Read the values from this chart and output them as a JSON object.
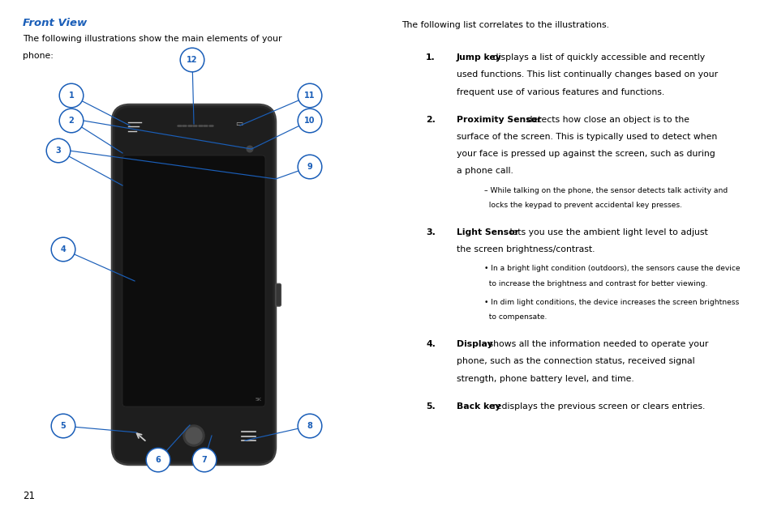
{
  "bg_color": "#ffffff",
  "blue": "#1a5eb8",
  "black": "#000000",
  "phone_body": "#252525",
  "phone_screen": "#111111",
  "title": "Front View",
  "intro_left_1": "The following illustrations show the main elements of your",
  "intro_left_2": "phone:",
  "intro_right": "The following list correlates to the illustrations.",
  "page_num": "21",
  "items": [
    {
      "n": "1.",
      "bold": "Jump key",
      "rest_lines": [
        " displays a list of quickly accessible and recently",
        "used functions. This list continually changes based on your",
        "frequent use of various features and functions."
      ],
      "subs": []
    },
    {
      "n": "2.",
      "bold": "Proximity Sensor",
      "rest_lines": [
        " detects how close an object is to the",
        "surface of the screen. This is typically used to detect when",
        "your face is pressed up against the screen, such as during",
        "a phone call."
      ],
      "subs": [
        {
          "type": "dash",
          "lines": [
            "– While talking on the phone, the sensor detects talk activity and",
            "  locks the keypad to prevent accidental key presses."
          ]
        }
      ]
    },
    {
      "n": "3.",
      "bold": "Light Sensor",
      "rest_lines": [
        " lets you use the ambient light level to adjust",
        "the screen brightness/contrast."
      ],
      "subs": [
        {
          "type": "bullet",
          "lines": [
            "• In a bright light condition (outdoors), the sensors cause the device",
            "  to increase the brightness and contrast for better viewing."
          ]
        },
        {
          "type": "bullet",
          "lines": [
            "• In dim light conditions, the device increases the screen brightness",
            "  to compensate."
          ]
        }
      ]
    },
    {
      "n": "4.",
      "bold": "Display",
      "rest_lines": [
        " shows all the information needed to operate your",
        "phone, such as the connection status, received signal",
        "strength, phone battery level, and time."
      ],
      "subs": []
    },
    {
      "n": "5.",
      "bold": "Back key",
      "rest_lines": [
        " redisplays the previous screen or clears entries."
      ],
      "subs": []
    }
  ]
}
